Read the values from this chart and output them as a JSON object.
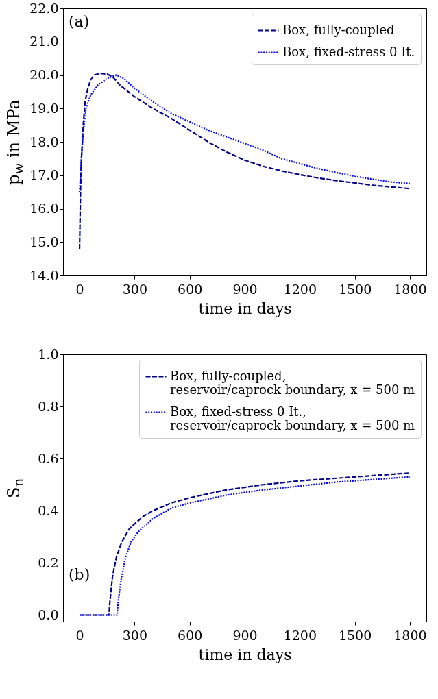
{
  "chart_data": [
    {
      "type": "line",
      "xlabel": "time in days",
      "ylabel": "p$_{w}$ in MPa",
      "annotations": [
        "(a)"
      ],
      "legend": "top right",
      "xlim": [
        -90,
        1890
      ],
      "ylim": [
        14,
        22
      ],
      "xticks": [
        0,
        300,
        600,
        900,
        1200,
        1500,
        1800
      ],
      "yticks": [
        {
          "value": 14,
          "label": "14.0"
        },
        {
          "value": 15,
          "label": "15.0"
        },
        {
          "value": 16,
          "label": "16.0"
        },
        {
          "value": 17,
          "label": "17.0"
        },
        {
          "value": 18,
          "label": "18.0"
        },
        {
          "value": 19,
          "label": "19.0"
        },
        {
          "value": 20,
          "label": "20.0"
        },
        {
          "value": 21,
          "label": "21.0"
        },
        {
          "value": 22,
          "label": "22.0"
        }
      ],
      "grid": false,
      "marker": "none",
      "series": [
        {
          "name": "Box, fully-coupled",
          "color": "#00008b",
          "line_style": "dashed",
          "x": [
            0,
            5,
            10,
            20,
            30,
            45,
            60,
            80,
            110,
            150,
            180,
            220,
            300,
            400,
            500,
            600,
            700,
            800,
            900,
            1000,
            1100,
            1200,
            1300,
            1400,
            1500,
            1600,
            1700,
            1800
          ],
          "values": [
            14.8,
            16.5,
            17.5,
            18.5,
            19.2,
            19.6,
            19.85,
            20.0,
            20.05,
            20.03,
            19.95,
            19.7,
            19.35,
            19.0,
            18.7,
            18.35,
            18.0,
            17.7,
            17.45,
            17.27,
            17.13,
            17.02,
            16.92,
            16.84,
            16.77,
            16.7,
            16.65,
            16.6
          ]
        },
        {
          "name": "Box, fixed-stress 0 It.",
          "color": "#0000ff",
          "line_style": "dotted",
          "x": [
            0,
            10,
            20,
            35,
            60,
            100,
            150,
            200,
            240,
            300,
            400,
            500,
            600,
            700,
            800,
            900,
            1000,
            1100,
            1200,
            1300,
            1400,
            1500,
            1600,
            1700,
            1800
          ],
          "values": [
            16.5,
            17.5,
            18.3,
            19.0,
            19.4,
            19.7,
            19.9,
            20.0,
            19.9,
            19.6,
            19.2,
            18.85,
            18.6,
            18.35,
            18.15,
            17.95,
            17.75,
            17.5,
            17.35,
            17.2,
            17.08,
            16.97,
            16.88,
            16.8,
            16.75
          ]
        }
      ]
    },
    {
      "type": "line",
      "xlabel": "time in days",
      "ylabel": "S$_{n}$",
      "annotations": [
        "(b)"
      ],
      "legend": "top right",
      "xlim": [
        -90,
        1890
      ],
      "ylim": [
        -0.025,
        1
      ],
      "xticks": [
        0,
        300,
        600,
        900,
        1200,
        1500,
        1800
      ],
      "yticks": [
        {
          "value": 0,
          "label": "0.0"
        },
        0.2,
        0.4,
        0.6,
        0.8,
        {
          "value": 1,
          "label": "1.0"
        }
      ],
      "grid": false,
      "marker": "none",
      "series": [
        {
          "name": "Box, fully-coupled,\nreservoir/caprock boundary, x = 500 m",
          "color": "#00008b",
          "line_style": "dashed",
          "x": [
            0,
            160,
            165,
            180,
            200,
            230,
            270,
            300,
            350,
            400,
            500,
            600,
            700,
            800,
            900,
            1000,
            1200,
            1400,
            1600,
            1800
          ],
          "values": [
            0,
            0,
            0.05,
            0.15,
            0.22,
            0.28,
            0.33,
            0.35,
            0.38,
            0.4,
            0.43,
            0.45,
            0.465,
            0.48,
            0.49,
            0.5,
            0.515,
            0.525,
            0.535,
            0.545
          ]
        },
        {
          "name": "Box, fixed-stress 0 It.,\nreservoir/caprock boundary, x = 500 m",
          "color": "#0000ff",
          "line_style": "dotted",
          "x": [
            0,
            205,
            210,
            225,
            250,
            280,
            320,
            400,
            500,
            600,
            700,
            800,
            900,
            1000,
            1200,
            1400,
            1600,
            1800
          ],
          "values": [
            0,
            0,
            0.05,
            0.13,
            0.22,
            0.28,
            0.32,
            0.37,
            0.41,
            0.43,
            0.445,
            0.46,
            0.47,
            0.48,
            0.495,
            0.51,
            0.52,
            0.53
          ]
        }
      ]
    }
  ]
}
